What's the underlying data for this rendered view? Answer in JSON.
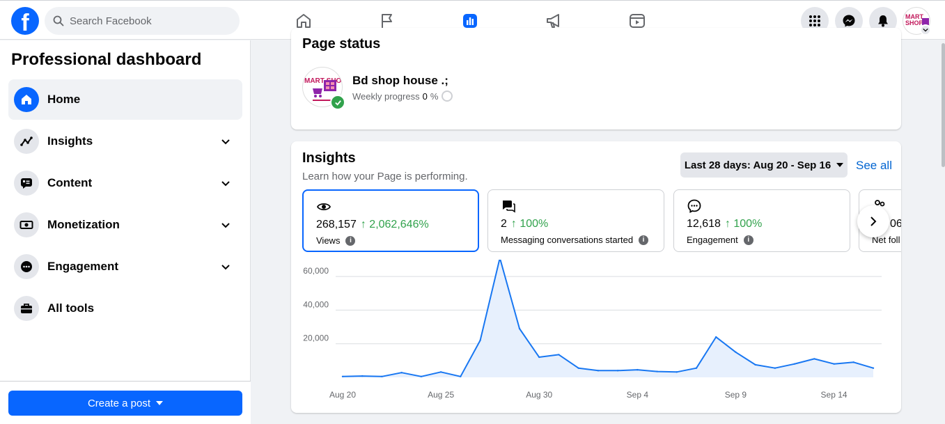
{
  "topbar": {
    "search_placeholder": "Search Facebook",
    "nav": [
      "home-icon",
      "flag-icon",
      "insights-icon",
      "megaphone-icon",
      "reels-icon"
    ],
    "active_nav": "insights-icon"
  },
  "sidebar": {
    "title": "Professional dashboard",
    "items": [
      {
        "label": "Home",
        "icon": "home-icon",
        "active": true
      },
      {
        "label": "Insights",
        "icon": "trend-icon",
        "expandable": true
      },
      {
        "label": "Content",
        "icon": "content-icon",
        "expandable": true
      },
      {
        "label": "Monetization",
        "icon": "money-icon",
        "expandable": true
      },
      {
        "label": "Engagement",
        "icon": "chat-icon",
        "expandable": true
      },
      {
        "label": "All tools",
        "icon": "toolbox-icon"
      }
    ],
    "create_post": "Create a post"
  },
  "page_status": {
    "title": "Page status",
    "page_name": "Bd shop house .;",
    "progress_label": "Weekly progress",
    "progress_value": "0",
    "progress_unit": "%",
    "avatar_text": "MART SHOP"
  },
  "insights": {
    "title": "Insights",
    "subtitle": "Learn how your Page is performing.",
    "date_range": "Last 28 days: Aug 20 - Sep 16",
    "see_all": "See all",
    "metrics": [
      {
        "value": "268,157",
        "change": "↑ 2,062,646%",
        "label": "Views",
        "icon": "eye-icon",
        "selected": true
      },
      {
        "value": "2",
        "change": "↑ 100%",
        "label": "Messaging conversations started",
        "icon": "messages-icon"
      },
      {
        "value": "12,618",
        "change": "↑ 100%",
        "label": "Engagement",
        "icon": "engagement-icon"
      },
      {
        "value": "06",
        "change": "",
        "label": "Net foll",
        "icon": "followers-icon"
      }
    ]
  },
  "colors": {
    "brand": "#0866ff",
    "positive": "#31a24c",
    "link": "#0064d1",
    "chart_line": "#1877f2",
    "chart_fill": "#e7f0fd"
  },
  "chart_data": {
    "type": "area",
    "title": "",
    "xlabel": "",
    "ylabel": "",
    "x_ticks": [
      "Aug 20",
      "Aug 25",
      "Aug 30",
      "Sep 4",
      "Sep 9",
      "Sep 14"
    ],
    "y_ticks": [
      "20,000",
      "40,000",
      "60,000"
    ],
    "ylim": [
      0,
      70000
    ],
    "grid": true,
    "legend": "none",
    "x": [
      "Aug 20",
      "Aug 21",
      "Aug 22",
      "Aug 23",
      "Aug 24",
      "Aug 25",
      "Aug 26",
      "Aug 27",
      "Aug 28",
      "Aug 29",
      "Aug 30",
      "Aug 31",
      "Sep 1",
      "Sep 2",
      "Sep 3",
      "Sep 4",
      "Sep 5",
      "Sep 6",
      "Sep 7",
      "Sep 8",
      "Sep 9",
      "Sep 10",
      "Sep 11",
      "Sep 12",
      "Sep 13",
      "Sep 14",
      "Sep 15",
      "Sep 16"
    ],
    "series": [
      {
        "values": [
          500,
          800,
          500,
          2800,
          500,
          3200,
          500,
          22000,
          71000,
          29000,
          12000,
          13500,
          5500,
          4000,
          4000,
          4500,
          3500,
          3200,
          5500,
          24000,
          15000,
          7500,
          5500,
          8000,
          11000,
          8000,
          9000,
          5500
        ]
      }
    ]
  }
}
